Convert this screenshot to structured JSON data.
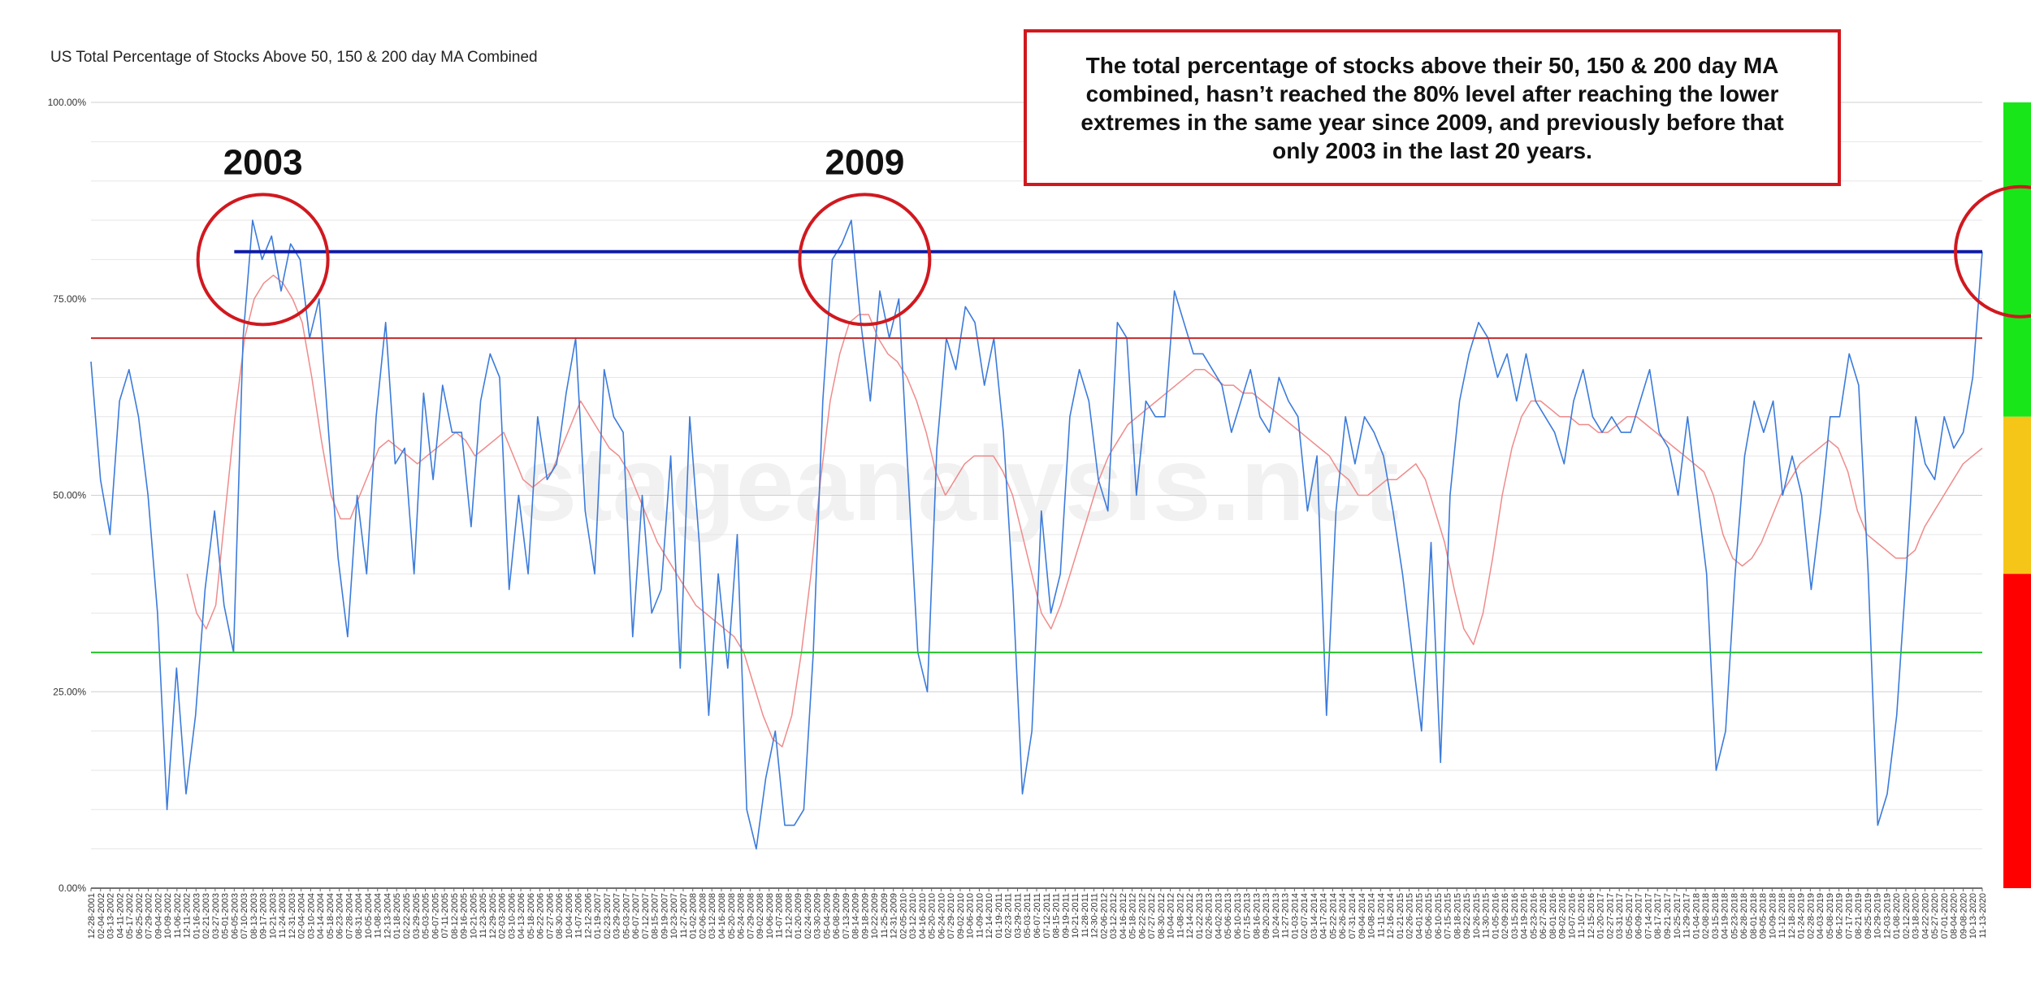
{
  "chart_data": {
    "type": "line",
    "title": "US Total Percentage of Stocks Above 50, 150 & 200 day MA Combined",
    "watermark": "stageanalysis.net",
    "ylim": [
      0,
      100
    ],
    "y_ticks": [
      "0.00%",
      "25.00%",
      "50.00%",
      "75.00%",
      "100.00%"
    ],
    "x_tick_labels": [
      "12-28-2001",
      "02-04-2002",
      "03-13-2002",
      "04-11-2002",
      "05-17-2002",
      "06-25-2002",
      "07-29-2002",
      "09-04-2002",
      "10-09-2002",
      "11-06-2002",
      "12-11-2002",
      "01-16-2003",
      "02-21-2003",
      "03-27-2003",
      "05-01-2003",
      "06-05-2003",
      "07-10-2003",
      "08-13-2003",
      "09-17-2003",
      "10-21-2003",
      "11-24-2003",
      "12-31-2003",
      "02-04-2004",
      "03-10-2004",
      "04-14-2004",
      "05-18-2004",
      "06-23-2004",
      "07-28-2004",
      "08-31-2004",
      "10-05-2004",
      "11-08-2004",
      "12-13-2004",
      "01-18-2005",
      "02-22-2005",
      "03-29-2005",
      "05-03-2005",
      "06-07-2005",
      "07-11-2005",
      "08-12-2005",
      "09-16-2005",
      "10-21-2005",
      "11-23-2005",
      "12-29-2005",
      "02-03-2006",
      "03-10-2006",
      "04-13-2006",
      "05-18-2006",
      "06-22-2006",
      "07-27-2006",
      "08-30-2006",
      "10-04-2006",
      "11-07-2006",
      "12-12-2006",
      "01-19-2007",
      "02-23-2007",
      "03-29-2007",
      "05-03-2007",
      "06-07-2007",
      "07-12-2007",
      "08-15-2007",
      "09-19-2007",
      "10-23-2007",
      "11-27-2007",
      "01-02-2008",
      "02-06-2008",
      "03-12-2008",
      "04-16-2008",
      "05-20-2008",
      "06-24-2008",
      "07-29-2008",
      "09-02-2008",
      "10-06-2008",
      "11-07-2008",
      "12-12-2008",
      "01-20-2009",
      "02-24-2009",
      "03-30-2009",
      "05-04-2009",
      "06-08-2009",
      "07-13-2009",
      "08-14-2009",
      "09-18-2009",
      "10-22-2009",
      "11-25-2009",
      "12-31-2009",
      "02-05-2010",
      "03-12-2010",
      "04-16-2010",
      "05-20-2010",
      "06-24-2010",
      "07-29-2010",
      "09-02-2010",
      "10-06-2010",
      "11-09-2010",
      "12-14-2010",
      "01-19-2011",
      "02-23-2011",
      "03-29-2011",
      "05-03-2011",
      "06-07-2011",
      "07-12-2011",
      "08-15-2011",
      "09-19-2011",
      "10-21-2011",
      "11-28-2011",
      "12-30-2011",
      "02-06-2012",
      "03-12-2012",
      "04-16-2012",
      "05-18-2012",
      "06-22-2012",
      "07-27-2012",
      "08-30-2012",
      "10-04-2012",
      "11-08-2012",
      "12-14-2012",
      "01-22-2013",
      "02-26-2013",
      "04-02-2013",
      "05-06-2013",
      "06-10-2013",
      "07-15-2013",
      "08-16-2013",
      "09-20-2013",
      "10-24-2013",
      "11-27-2013",
      "01-03-2014",
      "02-07-2014",
      "03-14-2014",
      "04-17-2014",
      "05-22-2014",
      "06-26-2014",
      "07-31-2014",
      "09-04-2014",
      "10-08-2014",
      "11-11-2014",
      "12-16-2014",
      "01-21-2015",
      "02-26-2015",
      "04-01-2015",
      "05-06-2015",
      "06-10-2015",
      "07-15-2015",
      "08-18-2015",
      "09-22-2015",
      "10-26-2015",
      "11-30-2015",
      "01-05-2016",
      "02-09-2016",
      "03-15-2016",
      "04-19-2016",
      "05-23-2016",
      "06-27-2016",
      "08-01-2016",
      "09-02-2016",
      "10-07-2016",
      "11-10-2016",
      "12-15-2016",
      "01-20-2017",
      "02-27-2017",
      "03-31-2017",
      "05-05-2017",
      "06-09-2017",
      "07-14-2017",
      "08-17-2017",
      "09-21-2017",
      "10-25-2017",
      "11-29-2017",
      "01-04-2018",
      "02-08-2018",
      "03-15-2018",
      "04-19-2018",
      "05-23-2018",
      "06-28-2018",
      "08-01-2018",
      "09-05-2018",
      "10-09-2018",
      "11-12-2018",
      "12-18-2018",
      "01-24-2019",
      "02-28-2019",
      "04-03-2019",
      "05-08-2019",
      "06-12-2019",
      "07-17-2019",
      "08-21-2019",
      "09-25-2019",
      "10-29-2019",
      "12-03-2019",
      "01-08-2020",
      "02-12-2020",
      "03-18-2020",
      "04-22-2020",
      "05-27-2020",
      "07-01-2020",
      "08-04-2020",
      "09-08-2020",
      "10-13-2020",
      "11-13-2020"
    ],
    "reference_lines": [
      {
        "value": 81,
        "color": "#0f1ba6"
      },
      {
        "value": 70,
        "color": "#c62828"
      },
      {
        "value": 30,
        "color": "#22c42a"
      }
    ],
    "zone_bar": [
      {
        "from": 60,
        "to": 100,
        "color": "#19e619"
      },
      {
        "from": 40,
        "to": 60,
        "color": "#f5c518"
      },
      {
        "from": 0,
        "to": 40,
        "color": "#ff0000"
      }
    ],
    "highlights": [
      {
        "label": "2003",
        "x_index": 18,
        "y": 80
      },
      {
        "label": "2009",
        "x_index": 81,
        "y": 80
      },
      {
        "label": "",
        "x_index": 202,
        "y": 81
      }
    ],
    "series": [
      {
        "color": "#3b7bdb",
        "values": [
          67,
          52,
          45,
          62,
          66,
          60,
          50,
          35,
          10,
          28,
          12,
          22,
          38,
          48,
          36,
          30,
          70,
          85,
          80,
          83,
          76,
          82,
          80,
          70,
          75,
          58,
          42,
          32,
          50,
          40,
          60,
          72,
          54,
          56,
          40,
          63,
          52,
          64,
          58,
          58,
          46,
          62,
          68,
          65,
          38,
          50,
          40,
          60,
          52,
          54,
          63,
          70,
          48,
          40,
          66,
          60,
          58,
          32,
          50,
          35,
          38,
          55,
          28,
          60,
          44,
          22,
          40,
          28,
          45,
          10,
          5,
          14,
          20,
          8,
          8,
          10,
          30,
          62,
          80,
          82,
          85,
          72,
          62,
          76,
          70,
          75,
          52,
          30,
          25,
          56,
          70,
          66,
          74,
          72,
          64,
          70,
          58,
          38,
          12,
          20,
          48,
          35,
          40,
          60,
          66,
          62,
          52,
          48,
          72,
          70,
          50,
          62,
          60,
          60,
          76,
          72,
          68,
          68,
          66,
          64,
          58,
          62,
          66,
          60,
          58,
          65,
          62,
          60,
          48,
          55,
          22,
          48,
          60,
          54,
          60,
          58,
          55,
          48,
          40,
          30,
          20,
          44,
          16,
          50,
          62,
          68,
          72,
          70,
          65,
          68,
          62,
          68,
          62,
          60,
          58,
          54,
          62,
          66,
          60,
          58,
          60,
          58,
          58,
          62,
          66,
          58,
          56,
          50,
          60,
          50,
          40,
          15,
          20,
          40,
          55,
          62,
          58,
          62,
          50,
          55,
          50,
          38,
          48,
          60,
          60,
          68,
          64,
          40,
          8,
          12,
          22,
          40,
          60,
          54,
          52,
          60,
          56,
          58,
          65,
          81
        ]
      },
      {
        "color": "#ef8b8b",
        "values": [
          null,
          null,
          null,
          null,
          null,
          null,
          null,
          null,
          null,
          null,
          40,
          35,
          33,
          36,
          48,
          60,
          70,
          75,
          77,
          78,
          77,
          75,
          72,
          65,
          57,
          50,
          47,
          47,
          50,
          53,
          56,
          57,
          56,
          55,
          54,
          55,
          56,
          57,
          58,
          57,
          55,
          56,
          57,
          58,
          55,
          52,
          51,
          52,
          53,
          56,
          59,
          62,
          60,
          58,
          56,
          55,
          53,
          50,
          47,
          44,
          42,
          40,
          38,
          36,
          35,
          34,
          33,
          32,
          30,
          26,
          22,
          19,
          18,
          22,
          30,
          40,
          52,
          62,
          68,
          72,
          73,
          73,
          70,
          68,
          67,
          65,
          62,
          58,
          53,
          50,
          52,
          54,
          55,
          55,
          55,
          53,
          50,
          45,
          40,
          35,
          33,
          36,
          40,
          44,
          48,
          52,
          55,
          57,
          59,
          60,
          61,
          62,
          63,
          64,
          65,
          66,
          66,
          65,
          64,
          64,
          63,
          63,
          62,
          61,
          60,
          59,
          58,
          57,
          56,
          55,
          53,
          52,
          50,
          50,
          51,
          52,
          52,
          53,
          54,
          52,
          48,
          44,
          38,
          33,
          31,
          35,
          42,
          50,
          56,
          60,
          62,
          62,
          61,
          60,
          60,
          59,
          59,
          58,
          58,
          59,
          60,
          60,
          59,
          58,
          57,
          56,
          55,
          54,
          53,
          50,
          45,
          42,
          41,
          42,
          44,
          47,
          50,
          52,
          54,
          55,
          56,
          57,
          56,
          53,
          48,
          45,
          44,
          43,
          42,
          42,
          43,
          46,
          48,
          50,
          52,
          54,
          55,
          56
        ]
      }
    ]
  },
  "annotation": {
    "text": "The total percentage of stocks above their 50, 150 & 200 day MA combined, hasn’t reached the 80% level after reaching the lower extremes in the same year since 2009, and previously before that only 2003 in the last 20 years."
  }
}
